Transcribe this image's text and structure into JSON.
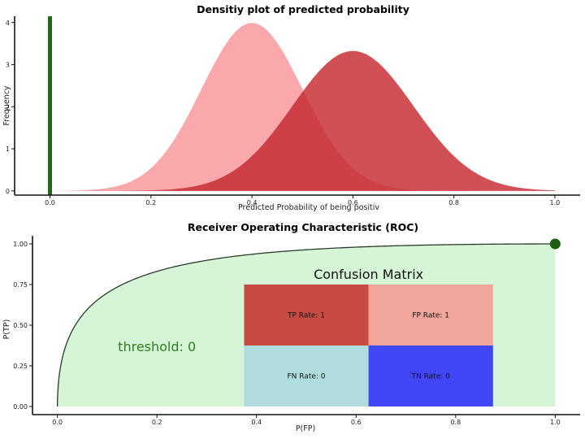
{
  "chart_data": [
    {
      "type": "area",
      "title": "Densitiy plot of predicted probability",
      "xlabel": "Predicted Probability of being positiv",
      "ylabel": "Frequency",
      "xlim": [
        -0.07,
        1.05
      ],
      "ylim": [
        -0.1,
        4.15
      ],
      "x_ticks": [
        0,
        0.2,
        0.4,
        0.6,
        0.8,
        1.0
      ],
      "x_tick_labels": [
        "0.0",
        "0.2",
        "0.4",
        "0.6",
        "0.8",
        "1.0"
      ],
      "y_ticks": [
        0,
        1,
        2,
        3,
        4
      ],
      "y_tick_labels": [
        "0",
        "1",
        "2",
        "3",
        "4"
      ],
      "series": [
        {
          "mean": 0.4,
          "sd": 0.1,
          "color": "#f9959a",
          "opacity": 0.82
        },
        {
          "mean": 0.6,
          "sd": 0.12,
          "color": "#c62a2f",
          "opacity": 0.82
        }
      ],
      "threshold": {
        "x": 0,
        "color": "#1d6b12"
      },
      "grid": false
    },
    {
      "type": "area",
      "title": "Receiver Operating Characteristic (ROC)",
      "xlabel": "P(FP)",
      "ylabel": "P(TP)",
      "xlim": [
        -0.05,
        1.05
      ],
      "ylim": [
        -0.05,
        1.05
      ],
      "x_ticks": [
        0,
        0.2,
        0.4,
        0.6,
        0.8,
        1.0
      ],
      "x_tick_labels": [
        "0.0",
        "0.2",
        "0.4",
        "0.6",
        "0.8",
        "1.0"
      ],
      "y_ticks": [
        0,
        0.25,
        0.5,
        0.75,
        1.0
      ],
      "y_tick_labels": [
        "0.00",
        "0.25",
        "0.50",
        "0.75",
        "1.00"
      ],
      "fill_color": "#d6f5d6",
      "curve_color": "#2b3b2b",
      "current_point": {
        "x": 1.0,
        "y": 1.0,
        "color": "#1d5e12"
      },
      "threshold_label": "threshold: 0",
      "threshold_label_pos": {
        "x": 0.2,
        "y": 0.37
      },
      "confusion_matrix": {
        "title": "Confusion Matrix",
        "x_range": [
          0.375,
          0.875
        ],
        "y_range": [
          0,
          0.75
        ],
        "cells": [
          {
            "label": "TP Rate: 1",
            "color": "#c84a42"
          },
          {
            "label": "FP Rate: 1",
            "color": "#f0a49a"
          },
          {
            "label": "FN Rate: 0",
            "color": "#afdcdc"
          },
          {
            "label": "TN Rate: 0",
            "color": "#4146f7"
          }
        ]
      },
      "grid": false
    }
  ]
}
